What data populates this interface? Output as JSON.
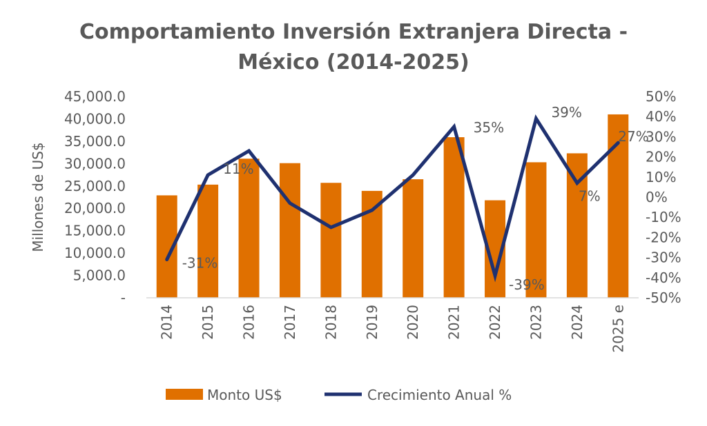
{
  "chart_data": {
    "type": "bar+line",
    "title": "Comportamiento Inversión Extranjera Directa - México (2014-2025)",
    "title_lines": [
      "Comportamiento Inversión Extranjera Directa -",
      "México (2014-2025)"
    ],
    "ylabel": "Millones de US$",
    "xlabel": "",
    "categories": [
      "2014",
      "2015",
      "2016",
      "2017",
      "2018",
      "2019",
      "2020",
      "2021",
      "2022",
      "2023",
      "2024",
      "2025 e"
    ],
    "ylim": [
      0,
      45000
    ],
    "y2lim": [
      -0.5,
      0.5
    ],
    "yticks": [
      "-",
      "5,000.0",
      "10,000.0",
      "15,000.0",
      "20,000.0",
      "25,000.0",
      "30,000.0",
      "35,000.0",
      "40,000.0",
      "45,000.0"
    ],
    "y2ticks": [
      "-50%",
      "-40%",
      "-30%",
      "-20%",
      "-10%",
      "0%",
      "10%",
      "20%",
      "30%",
      "40%",
      "50%"
    ],
    "legend_position": "bottom",
    "grid": false,
    "series": [
      {
        "name": "Monto US$",
        "type": "bar",
        "axis": "left",
        "color": "#E07000",
        "values": [
          22900,
          25300,
          31100,
          30100,
          25700,
          23900,
          26500,
          35900,
          21800,
          30300,
          32300,
          41000
        ]
      },
      {
        "name": "Crecimiento Anual %",
        "type": "line",
        "axis": "right",
        "color": "#1F3170",
        "values": [
          -0.31,
          0.11,
          0.23,
          -0.03,
          -0.15,
          -0.065,
          0.11,
          0.35,
          -0.39,
          0.39,
          0.07,
          0.27
        ],
        "data_labels": [
          "-31%",
          "11%",
          null,
          null,
          null,
          null,
          null,
          "35%",
          "-39%",
          "39%",
          "7%",
          "27%"
        ]
      }
    ]
  }
}
